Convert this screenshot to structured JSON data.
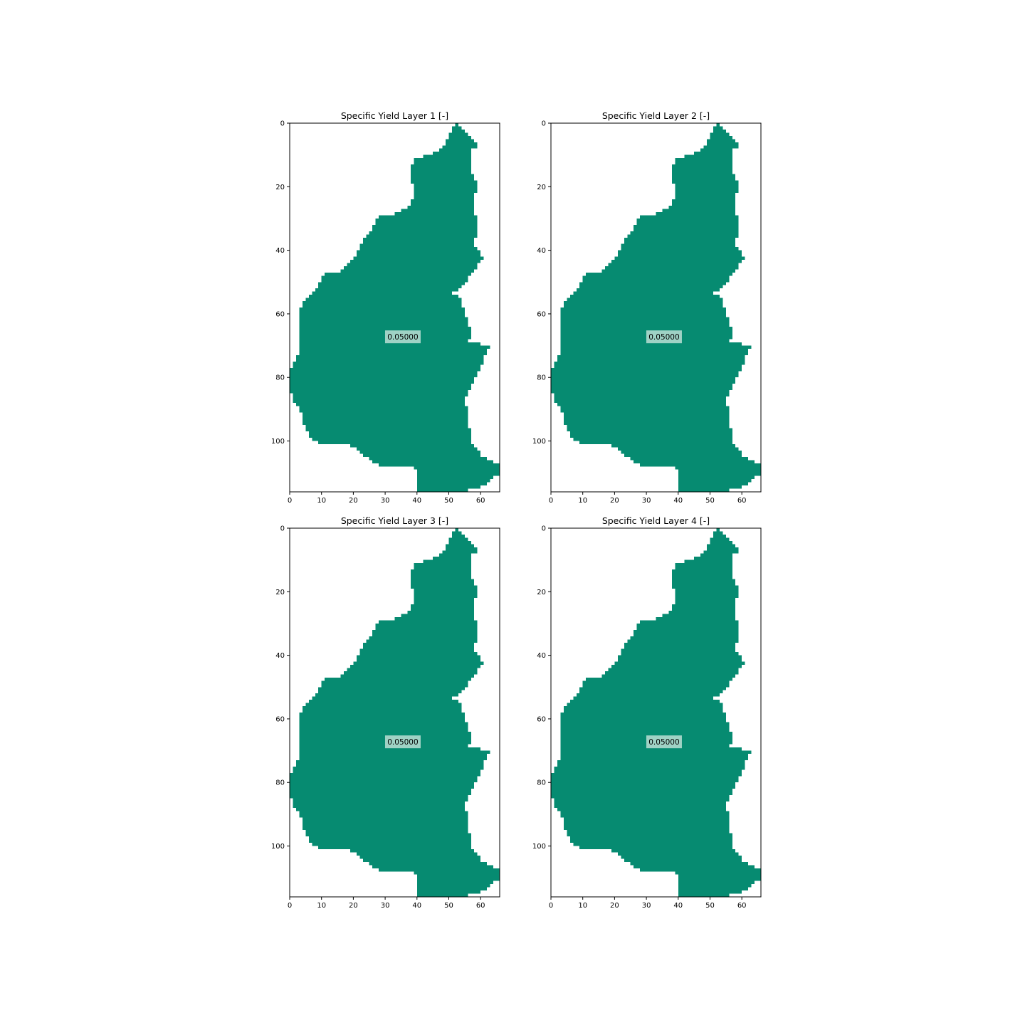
{
  "figure": {
    "colors": {
      "fill": "#068b71",
      "background": "#ffffff",
      "label_box": "#9fd2c5"
    }
  },
  "chart_data": [
    {
      "type": "heatmap",
      "title": "Specific Yield Layer 1 [-]",
      "xlim": [
        0,
        66
      ],
      "ylim": [
        0,
        116
      ],
      "y_inverted": true,
      "xticks": [
        "0",
        "10",
        "20",
        "30",
        "40",
        "50",
        "60"
      ],
      "yticks": [
        "0",
        "20",
        "40",
        "60",
        "80",
        "100"
      ],
      "value": 0.05,
      "value_label": "0.05000",
      "value_label_position": [
        34,
        67
      ]
    },
    {
      "type": "heatmap",
      "title": "Specific Yield Layer 2 [-]",
      "xlim": [
        0,
        66
      ],
      "ylim": [
        0,
        116
      ],
      "y_inverted": true,
      "xticks": [
        "0",
        "10",
        "20",
        "30",
        "40",
        "50",
        "60"
      ],
      "yticks": [
        "0",
        "20",
        "40",
        "60",
        "80",
        "100"
      ],
      "value": 0.05,
      "value_label": "0.05000",
      "value_label_position": [
        34,
        67
      ]
    },
    {
      "type": "heatmap",
      "title": "Specific Yield Layer 3 [-]",
      "xlim": [
        0,
        66
      ],
      "ylim": [
        0,
        116
      ],
      "y_inverted": true,
      "xticks": [
        "0",
        "10",
        "20",
        "30",
        "40",
        "50",
        "60"
      ],
      "yticks": [
        "0",
        "20",
        "40",
        "60",
        "80",
        "100"
      ],
      "value": 0.05,
      "value_label": "0.05000",
      "value_label_position": [
        34,
        67
      ]
    },
    {
      "type": "heatmap",
      "title": "Specific Yield Layer 4 [-]",
      "xlim": [
        0,
        66
      ],
      "ylim": [
        0,
        116
      ],
      "y_inverted": true,
      "xticks": [
        "0",
        "10",
        "20",
        "30",
        "40",
        "50",
        "60"
      ],
      "yticks": [
        "0",
        "20",
        "40",
        "60",
        "80",
        "100"
      ],
      "value": 0.05,
      "value_label": "0.05000",
      "value_label_position": [
        34,
        67
      ]
    }
  ]
}
